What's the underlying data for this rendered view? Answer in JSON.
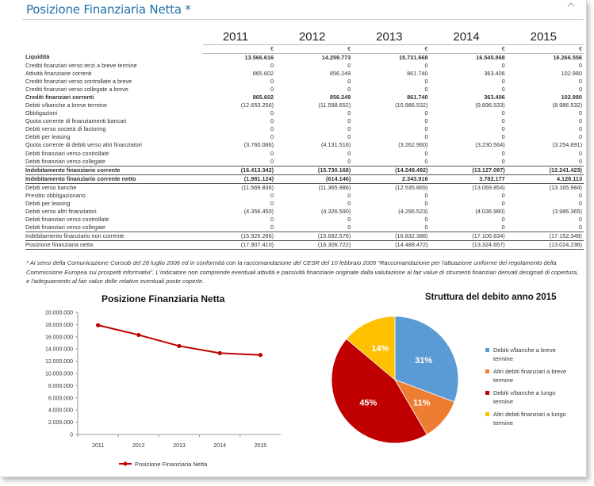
{
  "header": {
    "title": "Posizione Finanziaria Netta *",
    "collapse_icon": "chevron-up-icon"
  },
  "table": {
    "years": [
      "2011",
      "2012",
      "2013",
      "2014",
      "2015"
    ],
    "currency": "€",
    "rows": [
      {
        "label": "Liquidità",
        "values": [
          "13.566.616",
          "14.259.773",
          "15.731.668",
          "16.545.868",
          "16.266.556"
        ],
        "style": "bold"
      },
      {
        "label": "Crediti finanziari verso terzi a breve termine",
        "values": [
          "0",
          "0",
          "0",
          "0",
          "0"
        ],
        "style": ""
      },
      {
        "label": "Attività finanziarie correnti",
        "values": [
          "865.602",
          "856.249",
          "861.740",
          "363.406",
          "102.980"
        ],
        "style": ""
      },
      {
        "label": "Crediti finanziari verso controllate a breve",
        "values": [
          "0",
          "0",
          "0",
          "0",
          "0"
        ],
        "style": ""
      },
      {
        "label": "Crediti finanziari verso collegate a breve",
        "values": [
          "0",
          "0",
          "0",
          "0",
          "0"
        ],
        "style": ""
      },
      {
        "label": "Crediti finanziari correnti",
        "values": [
          "865.602",
          "856.249",
          "861.740",
          "363.406",
          "102.980"
        ],
        "style": "bold"
      },
      {
        "label": "Debiti v/banche a breve termine",
        "values": [
          "(12.653.256)",
          "(11.598.652)",
          "(10.986.532)",
          "(9.896.533)",
          "(8.986.532)"
        ],
        "style": ""
      },
      {
        "label": "Obbligazioni",
        "values": [
          "0",
          "0",
          "0",
          "0",
          "0"
        ],
        "style": ""
      },
      {
        "label": "Quota corrente di finanziamenti bancari",
        "values": [
          "0",
          "0",
          "0",
          "0",
          "0"
        ],
        "style": ""
      },
      {
        "label": "Debiti verso società di factoring",
        "values": [
          "0",
          "0",
          "0",
          "0",
          "0"
        ],
        "style": ""
      },
      {
        "label": "Debiti per leasing",
        "values": [
          "0",
          "0",
          "0",
          "0",
          "0"
        ],
        "style": ""
      },
      {
        "label": "Quota corrente di debiti verso altri finanziatori",
        "values": [
          "(3.760.086)",
          "(4.131.516)",
          "(3.262.960)",
          "(3.230.564)",
          "(3.254.891)"
        ],
        "style": ""
      },
      {
        "label": "Debiti finanziari verso controllate",
        "values": [
          "0",
          "0",
          "0",
          "0",
          "0"
        ],
        "style": ""
      },
      {
        "label": "Debiti finanziari verso collegate",
        "values": [
          "0",
          "0",
          "0",
          "0",
          "0"
        ],
        "style": ""
      },
      {
        "label": "Indebitamento finanziario corrente",
        "values": [
          "(16.413.342)",
          "(15.730.168)",
          "(14.249.492)",
          "(13.127.097)",
          "(12.241.423)"
        ],
        "style": "bold line-top"
      },
      {
        "label": "Indebitamento finanziario corrente netto",
        "values": [
          "(1.981.124)",
          "(614.146)",
          "2.343.916",
          "3.782.177",
          "4.128.113"
        ],
        "style": "bold line-top line-bot"
      },
      {
        "label": "Debiti verso banche",
        "values": [
          "(11.569.836)",
          "(11.365.986)",
          "(12.535.865)",
          "(13.069.854)",
          "(13.165.984)"
        ],
        "style": ""
      },
      {
        "label": "Prestito obbligazionario",
        "values": [
          "0",
          "0",
          "0",
          "0",
          "0"
        ],
        "style": ""
      },
      {
        "label": "Debiti per leasing",
        "values": [
          "0",
          "0",
          "0",
          "0",
          "0"
        ],
        "style": ""
      },
      {
        "label": "Debiti verso altri finanziatori",
        "values": [
          "(4.356.450)",
          "(4.326.590)",
          "(4.296.523)",
          "(4.036.980)",
          "(3.986.365)"
        ],
        "style": ""
      },
      {
        "label": "Debiti finanziari verso controllate",
        "values": [
          "0",
          "0",
          "0",
          "0",
          "0"
        ],
        "style": ""
      },
      {
        "label": "Debiti finanziari verso collegate",
        "values": [
          "0",
          "0",
          "0",
          "0",
          "0"
        ],
        "style": ""
      },
      {
        "label": "Indebitamento finanziario non corrente",
        "values": [
          "(15.926.286)",
          "(15.692.576)",
          "(16.832.388)",
          "(17.106.834)",
          "(17.152.349)"
        ],
        "style": "line-top"
      },
      {
        "label": "Posizione finanziaria netta",
        "values": [
          "(17.907.410)",
          "(16.306.722)",
          "(14.488.472)",
          "(13.324.657)",
          "(13.024.236)"
        ],
        "style": "line-top line-bot"
      }
    ]
  },
  "footnote": "* Ai sensi della Comunicazione Consob del 28 luglio 2006 ed in conformità con la raccomandazione del CESR del 10 febbraio 2005 “Raccomandazione per l'attuazione uniforme del regolamento della Commissione Europea sui prospetti informativi”. L'indicatore non comprende eventuali attività e passività finanziarie originate dalla valutazione al fair value di strumenti finanziari derivati designati di copertura, e l'adeguamento al fair value delle relative eventuali poste coperte.",
  "colors": {
    "title_blue": "#1e6fa8",
    "line_red": "#c00000",
    "pie_blue": "#5b9bd5",
    "pie_orange": "#ed7d31",
    "pie_red": "#c00000",
    "pie_yellow": "#ffc000"
  },
  "chart_data": [
    {
      "type": "line",
      "title": "Posizione Finanziaria Netta",
      "categories": [
        "2011",
        "2012",
        "2013",
        "2014",
        "2015"
      ],
      "series": [
        {
          "name": "Posizione Finanziaria Netta",
          "values": [
            17907410,
            16306722,
            14488472,
            13324657,
            13024236
          ]
        }
      ],
      "yticks": [
        "0",
        "2.000.000",
        "4.000.000",
        "6.000.000",
        "8.000.000",
        "10.000.000",
        "12.000.000",
        "14.000.000",
        "16.000.000",
        "18.000.000",
        "20.000.000"
      ],
      "ylim": [
        0,
        20000000
      ],
      "grid": false,
      "legend": "bottom"
    },
    {
      "type": "pie",
      "title": "Struttura del debito anno 2015",
      "slices": [
        {
          "label": "Debiti v/banche a breve termine",
          "value": 31,
          "display": "31%"
        },
        {
          "label": "Altri debiti finanziari a breve termine",
          "value": 11,
          "display": "11%"
        },
        {
          "label": "Debiti v/banche a lungo termine",
          "value": 45,
          "display": "45%"
        },
        {
          "label": "Altri debiti finanziari a lungo termine",
          "value": 14,
          "display": "14%"
        }
      ],
      "legend": "right"
    }
  ]
}
